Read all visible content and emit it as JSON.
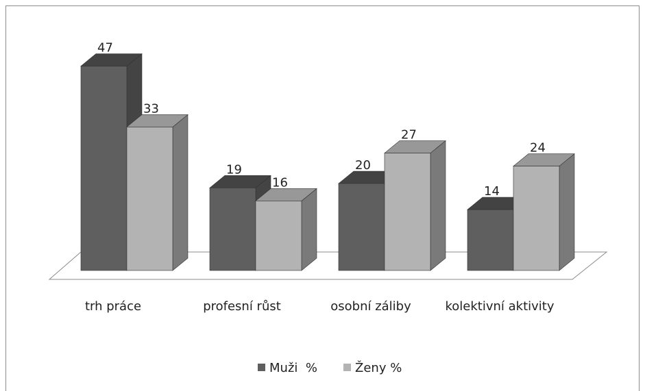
{
  "chart_data": {
    "type": "bar3d",
    "categories": [
      "trh práce",
      "profesní růst",
      "osobní záliby",
      "kolektivní aktivity"
    ],
    "series": [
      {
        "name": "Muži  %",
        "color": "#5f5f5f",
        "values": [
          47,
          19,
          20,
          14
        ]
      },
      {
        "name": "Ženy %",
        "color": "#b3b3b3",
        "values": [
          33,
          16,
          27,
          24
        ]
      }
    ],
    "legend": "bottom"
  }
}
